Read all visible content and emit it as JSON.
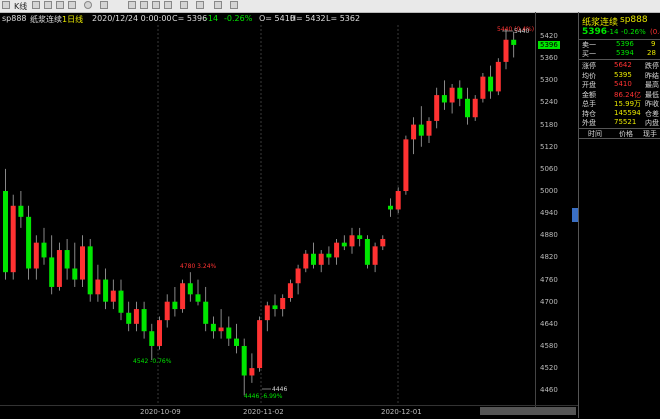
{
  "toolbar": {
    "tab": "K线"
  },
  "info": {
    "symbol": "sp888",
    "name": "纸浆连续",
    "period": "1日线",
    "datetime": "2020/12/24 0:00:00",
    "change": "C= 5396",
    "change_abs": "-14",
    "change_pct": "-0.26%",
    "open": "O= 5410",
    "high": "H= 5432",
    "low": "L= 5362"
  },
  "colors": {
    "up": "#ff3232",
    "down": "#00e600",
    "axis": "#bbbbbb",
    "highlight": "#00e600"
  },
  "yaxis": {
    "ticks": [
      "5420",
      "5360",
      "5300",
      "5240",
      "5180",
      "5120",
      "5060",
      "5000",
      "4940",
      "4880",
      "4820",
      "4760",
      "4700",
      "4640",
      "4580",
      "4520",
      "4460"
    ],
    "current": "5396"
  },
  "xaxis": {
    "labels": [
      "2020-10-09",
      "2020-11-02",
      "2020-12-01"
    ]
  },
  "annotations": {
    "high_top": "5440",
    "high_top_label": "5440 (0.4%)",
    "low_main": "4446",
    "low_main_label": "4446 -6.99%",
    "mid_high_label": "4780 3.24%",
    "mid_low_label": "4542 -0.76%"
  },
  "panel": {
    "name": "纸浆连续",
    "code": "sp888",
    "price": "5396",
    "chg": "-14",
    "chg_pct": "-0.26%",
    "chg_pct2": "(0.4)",
    "ask_label": "卖一",
    "ask_price": "5396",
    "ask_vol": "9",
    "bid_label": "买一",
    "bid_price": "5394",
    "bid_vol": "28",
    "rows": [
      {
        "l1": "涨停",
        "v1": "5642",
        "l2": "跌停"
      },
      {
        "l1": "均价",
        "v1": "5395",
        "l2": "昨结"
      },
      {
        "l1": "开盘",
        "v1": "5410",
        "l2": "最高"
      },
      {
        "l1": "金额",
        "v1": "86.24亿",
        "l2": "最低"
      },
      {
        "l1": "总手",
        "v1": "15.99万",
        "l2": "昨收"
      },
      {
        "l1": "持仓",
        "v1": "145594",
        "l2": "仓差"
      },
      {
        "l1": "外盘",
        "v1": "75521",
        "l2": "内盘"
      }
    ],
    "tick_header": [
      "时间",
      "价格",
      "现手"
    ]
  },
  "chart_data": {
    "type": "candlestick",
    "ylim": [
      4420,
      5450
    ],
    "candles": [
      [
        5000,
        5060,
        4760,
        4780
      ],
      [
        4780,
        4990,
        4760,
        4960
      ],
      [
        4960,
        5000,
        4900,
        4930
      ],
      [
        4930,
        4960,
        4760,
        4790
      ],
      [
        4790,
        4880,
        4760,
        4860
      ],
      [
        4860,
        4900,
        4800,
        4820
      ],
      [
        4820,
        4880,
        4720,
        4740
      ],
      [
        4740,
        4860,
        4730,
        4840
      ],
      [
        4840,
        4870,
        4760,
        4790
      ],
      [
        4790,
        4860,
        4740,
        4760
      ],
      [
        4760,
        4880,
        4740,
        4850
      ],
      [
        4850,
        4870,
        4700,
        4720
      ],
      [
        4720,
        4800,
        4700,
        4760
      ],
      [
        4760,
        4790,
        4680,
        4700
      ],
      [
        4700,
        4760,
        4680,
        4730
      ],
      [
        4730,
        4760,
        4650,
        4670
      ],
      [
        4670,
        4700,
        4620,
        4640
      ],
      [
        4640,
        4700,
        4620,
        4680
      ],
      [
        4680,
        4700,
        4600,
        4620
      ],
      [
        4620,
        4640,
        4542,
        4580
      ],
      [
        4580,
        4660,
        4570,
        4650
      ],
      [
        4650,
        4720,
        4630,
        4700
      ],
      [
        4700,
        4740,
        4660,
        4680
      ],
      [
        4680,
        4760,
        4670,
        4750
      ],
      [
        4750,
        4780,
        4700,
        4720
      ],
      [
        4720,
        4760,
        4690,
        4700
      ],
      [
        4700,
        4740,
        4620,
        4640
      ],
      [
        4640,
        4660,
        4600,
        4620
      ],
      [
        4620,
        4680,
        4600,
        4630
      ],
      [
        4630,
        4660,
        4580,
        4600
      ],
      [
        4600,
        4640,
        4560,
        4580
      ],
      [
        4580,
        4600,
        4446,
        4500
      ],
      [
        4500,
        4560,
        4480,
        4520
      ],
      [
        4520,
        4660,
        4510,
        4650
      ],
      [
        4650,
        4700,
        4620,
        4690
      ],
      [
        4690,
        4720,
        4660,
        4680
      ],
      [
        4680,
        4720,
        4660,
        4710
      ],
      [
        4710,
        4760,
        4700,
        4750
      ],
      [
        4750,
        4800,
        4720,
        4790
      ],
      [
        4790,
        4840,
        4780,
        4830
      ],
      [
        4830,
        4860,
        4790,
        4800
      ],
      [
        4800,
        4840,
        4780,
        4830
      ],
      [
        4830,
        4850,
        4800,
        4820
      ],
      [
        4820,
        4870,
        4800,
        4860
      ],
      [
        4860,
        4880,
        4840,
        4850
      ],
      [
        4850,
        4900,
        4830,
        4880
      ],
      [
        4880,
        4900,
        4850,
        4870
      ],
      [
        4870,
        4880,
        4790,
        4800
      ],
      [
        4800,
        4860,
        4780,
        4850
      ],
      [
        4850,
        4880,
        4840,
        4870
      ],
      [
        4960,
        4980,
        4930,
        4950
      ],
      [
        4950,
        5010,
        4940,
        5000
      ],
      [
        5000,
        5150,
        4990,
        5140
      ],
      [
        5140,
        5200,
        5100,
        5180
      ],
      [
        5180,
        5230,
        5120,
        5150
      ],
      [
        5150,
        5200,
        5130,
        5190
      ],
      [
        5190,
        5280,
        5170,
        5260
      ],
      [
        5260,
        5300,
        5220,
        5240
      ],
      [
        5240,
        5290,
        5210,
        5280
      ],
      [
        5280,
        5300,
        5230,
        5250
      ],
      [
        5250,
        5280,
        5180,
        5200
      ],
      [
        5200,
        5260,
        5190,
        5250
      ],
      [
        5250,
        5320,
        5240,
        5310
      ],
      [
        5310,
        5340,
        5250,
        5270
      ],
      [
        5270,
        5360,
        5260,
        5350
      ],
      [
        5350,
        5440,
        5330,
        5410
      ],
      [
        5410,
        5432,
        5362,
        5396
      ]
    ]
  }
}
